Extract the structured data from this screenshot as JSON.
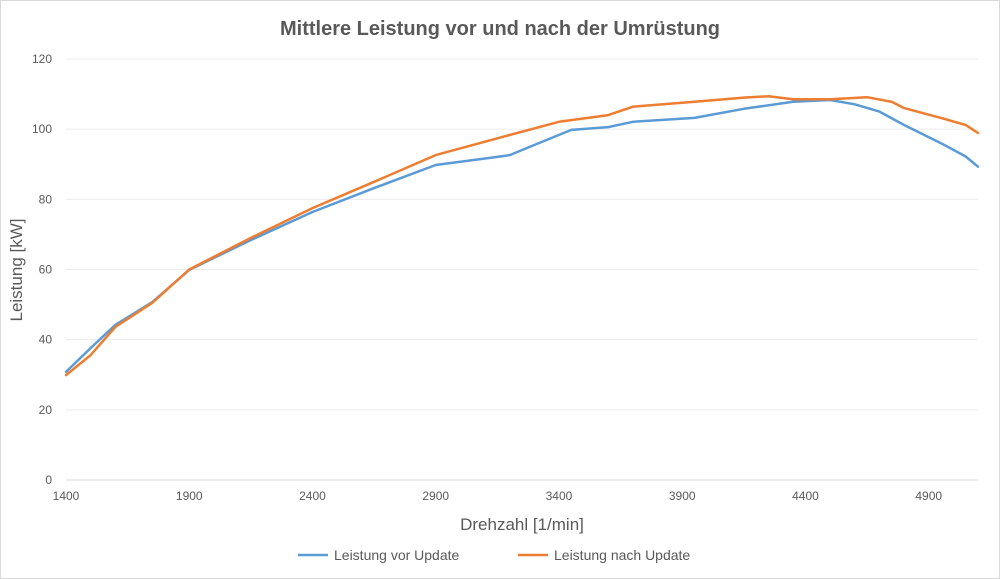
{
  "chart_data": {
    "type": "line",
    "title": "Mittlere Leistung vor und nach der Umrüstung",
    "xlabel": "Drehzahl [1/min]",
    "ylabel": "Leistung [kW]",
    "xlim": [
      1400,
      5100
    ],
    "ylim": [
      0,
      120
    ],
    "xticks": [
      1400,
      1900,
      2400,
      2900,
      3400,
      3900,
      4400,
      4900
    ],
    "yticks": [
      0,
      20,
      40,
      60,
      80,
      100,
      120
    ],
    "grid": "horizontal",
    "legend": "bottom",
    "series": [
      {
        "name": "Leistung vor Update",
        "color": "#5b9bd5",
        "x": [
          1400,
          1500,
          1600,
          1750,
          1900,
          2150,
          2400,
          2650,
          2900,
          3150,
          3200,
          3300,
          3450,
          3600,
          3700,
          3950,
          4150,
          4350,
          4500,
          4600,
          4700,
          4800,
          4950,
          5050,
          5100
        ],
        "y": [
          30.8,
          37.6,
          44.2,
          50.7,
          59.9,
          68.4,
          76.4,
          83.2,
          89.8,
          92.1,
          92.6,
          95.5,
          99.8,
          100.6,
          102.1,
          103.2,
          105.8,
          107.8,
          108.3,
          107.1,
          105.0,
          101.2,
          96.0,
          92.2,
          89.3
        ]
      },
      {
        "name": "Leistung nach Update",
        "color": "#ed7d31",
        "x": [
          1400,
          1500,
          1600,
          1750,
          1900,
          2150,
          2400,
          2650,
          2900,
          3150,
          3400,
          3600,
          3700,
          3950,
          4150,
          4250,
          4350,
          4500,
          4650,
          4750,
          4800,
          4950,
          5050,
          5100
        ],
        "y": [
          29.9,
          35.6,
          43.6,
          50.5,
          60.0,
          69.0,
          77.5,
          85.0,
          92.6,
          97.4,
          102.1,
          104.0,
          106.4,
          107.8,
          109.0,
          109.4,
          108.5,
          108.5,
          109.1,
          107.8,
          106.0,
          103.2,
          101.2,
          98.9
        ]
      }
    ]
  }
}
